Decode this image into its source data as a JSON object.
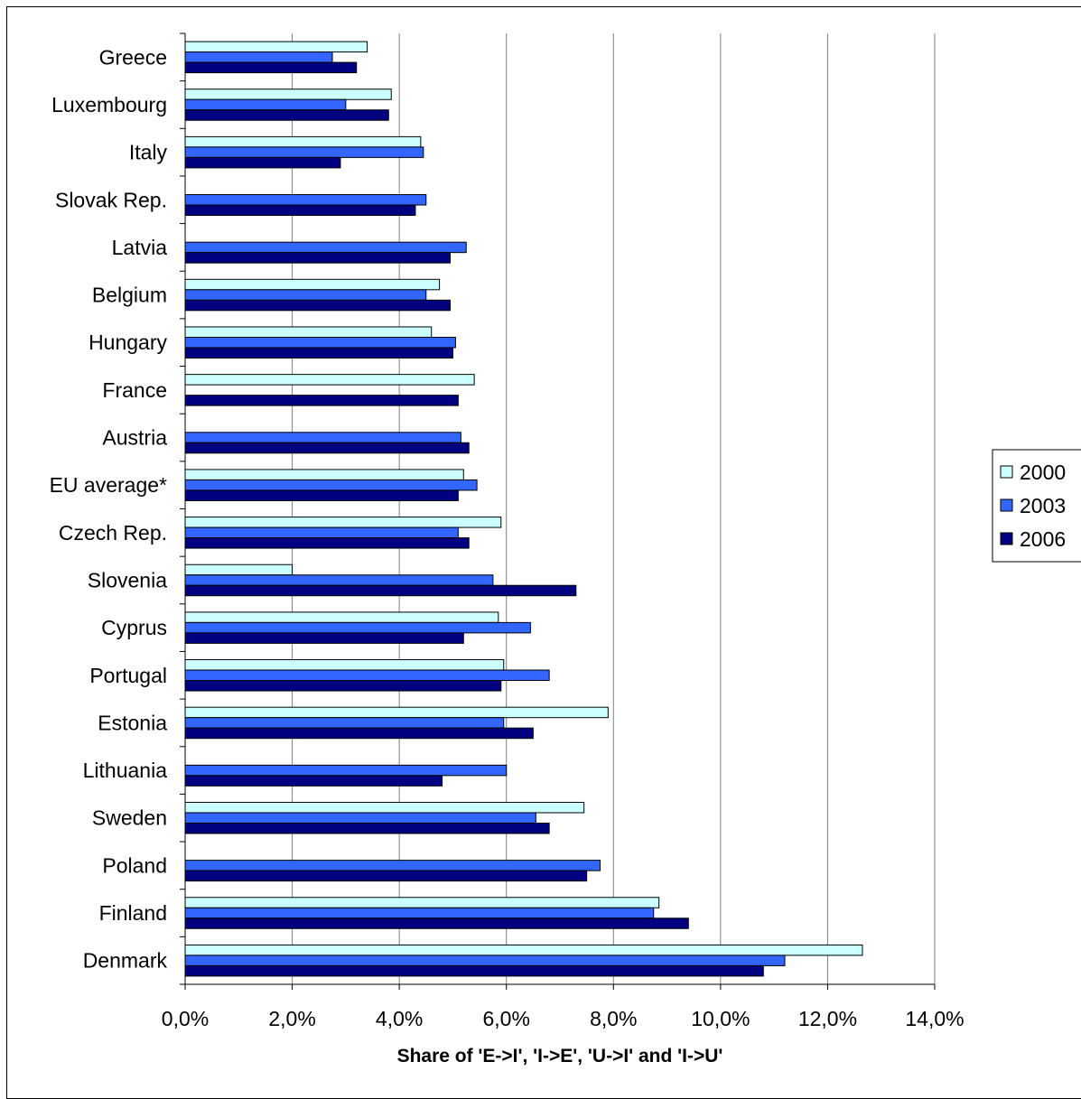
{
  "chart_data": {
    "type": "bar",
    "orientation": "horizontal",
    "categories": [
      "Greece",
      "Luxembourg",
      "Italy",
      "Slovak Rep.",
      "Latvia",
      "Belgium",
      "Hungary",
      "France",
      "Austria",
      "EU average*",
      "Czech Rep.",
      "Slovenia",
      "Cyprus",
      "Portugal",
      "Estonia",
      "Lithuania",
      "Sweden",
      "Poland",
      "Finland",
      "Denmark"
    ],
    "series": [
      {
        "name": "2000",
        "color": "#ccffff",
        "values": [
          3.4,
          3.85,
          4.4,
          null,
          null,
          4.75,
          4.6,
          5.4,
          null,
          5.2,
          5.9,
          2.0,
          5.85,
          5.95,
          7.9,
          null,
          7.45,
          null,
          8.85,
          12.65
        ]
      },
      {
        "name": "2003",
        "color": "#3366ff",
        "values": [
          2.75,
          3.0,
          4.45,
          4.5,
          5.25,
          4.5,
          5.05,
          null,
          5.15,
          5.45,
          5.1,
          5.75,
          6.45,
          6.8,
          5.95,
          6.0,
          6.55,
          7.75,
          8.75,
          11.2
        ]
      },
      {
        "name": "2006",
        "color": "#000080",
        "values": [
          3.2,
          3.8,
          2.9,
          4.3,
          4.95,
          4.95,
          5.0,
          5.1,
          5.3,
          5.1,
          5.3,
          7.3,
          5.2,
          5.9,
          6.5,
          4.8,
          6.8,
          7.5,
          9.4,
          10.8
        ]
      }
    ],
    "xlim": [
      0,
      14
    ],
    "x_ticks": [
      "0,0%",
      "2,0%",
      "4,0%",
      "6,0%",
      "8,0%",
      "10,0%",
      "12,0%",
      "14,0%"
    ],
    "xlabel": "Share of 'E->I', 'I->E', 'U->I' and 'I->U'",
    "ylabel": "",
    "title": "",
    "grid": "vertical",
    "legend_position": "right"
  }
}
